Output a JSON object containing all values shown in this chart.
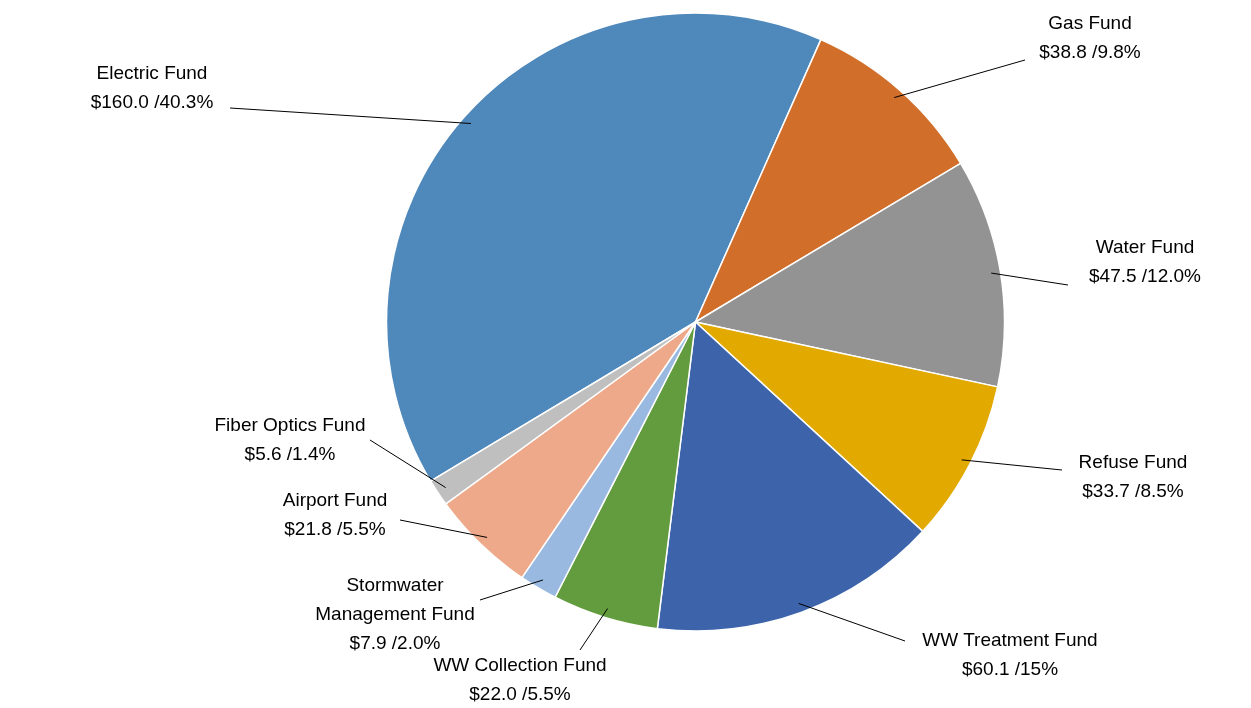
{
  "chart_data": {
    "type": "pie",
    "categories": [
      "Electric Fund",
      "Gas Fund",
      "Water Fund",
      "Refuse Fund",
      "WW Treatment Fund",
      "WW Collection Fund",
      "Stormwater Management Fund",
      "Airport Fund",
      "Fiber Optics Fund"
    ],
    "values": [
      160.0,
      38.8,
      47.5,
      33.7,
      60.1,
      22.0,
      7.9,
      21.8,
      5.6
    ],
    "colors": [
      "#4f88bb",
      "#d16e2a",
      "#939393",
      "#e2a900",
      "#3d64ab",
      "#629c3e",
      "#9ab9e0",
      "#eea98a",
      "#bfbfbf"
    ],
    "value_labels": [
      "$160.0 /40.3%",
      "$38.8 /9.8%",
      "$47.5 /12.0%",
      "$33.7 /8.5%",
      "$60.1 /15%",
      "$22.0 /5.5%",
      "$7.9 /2.0%",
      "$21.8 /5.5%",
      "$5.6 /1.4%"
    ],
    "legend": false
  }
}
